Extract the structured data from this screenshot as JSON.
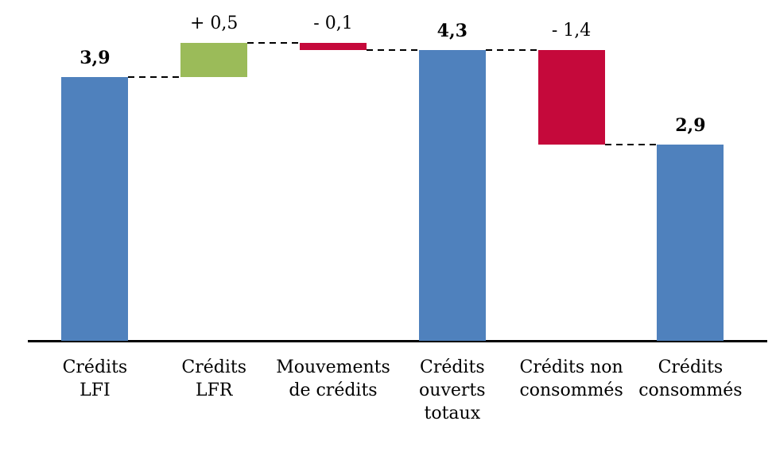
{
  "chart_data": {
    "type": "bar",
    "subtype": "waterfall",
    "title": "",
    "xlabel": "",
    "ylabel": "",
    "grid": false,
    "legend": false,
    "value_unit": "Md€ (implied, not shown)",
    "ylim": [
      0,
      5.1
    ],
    "axis_color": "#000000",
    "connector_style": "dashed",
    "colors": {
      "total": "#4f81bd",
      "increase": "#9bbb59",
      "decrease": "#c5093b"
    },
    "categories": [
      "Crédits LFI",
      "Crédits LFR",
      "Mouvements de crédits",
      "Crédits ouverts totaux",
      "Crédits non consommés",
      "Crédits consommés"
    ],
    "category_lines": [
      [
        "Crédits",
        "LFI"
      ],
      [
        "Crédits",
        "LFR"
      ],
      [
        "Mouvements",
        "de crédits"
      ],
      [
        "Crédits",
        "ouverts",
        "totaux"
      ],
      [
        "Crédits non",
        "consommés"
      ],
      [
        "Crédits",
        "consommés"
      ]
    ],
    "bars": [
      {
        "label": "3,9",
        "value": 3.9,
        "start": 0,
        "end": 3.9,
        "kind": "total",
        "color": "#4f81bd",
        "bold_label": true
      },
      {
        "label": "+ 0,5",
        "value": 0.5,
        "start": 3.9,
        "end": 4.4,
        "kind": "increase",
        "color": "#9bbb59",
        "bold_label": false
      },
      {
        "label": "- 0,1",
        "value": -0.1,
        "start": 4.4,
        "end": 4.3,
        "kind": "decrease",
        "color": "#c5093b",
        "bold_label": false
      },
      {
        "label": "4,3",
        "value": 4.3,
        "start": 0,
        "end": 4.3,
        "kind": "total",
        "color": "#4f81bd",
        "bold_label": true
      },
      {
        "label": "- 1,4",
        "value": -1.4,
        "start": 4.3,
        "end": 2.9,
        "kind": "decrease",
        "color": "#c5093b",
        "bold_label": false
      },
      {
        "label": "2,9",
        "value": 2.9,
        "start": 0,
        "end": 2.9,
        "kind": "total",
        "color": "#4f81bd",
        "bold_label": true
      }
    ],
    "connectors": [
      {
        "from": 0,
        "to": 1,
        "level": 3.9
      },
      {
        "from": 1,
        "to": 2,
        "level": 4.4
      },
      {
        "from": 2,
        "to": 3,
        "level": 4.3
      },
      {
        "from": 3,
        "to": 4,
        "level": 4.3
      },
      {
        "from": 4,
        "to": 5,
        "level": 2.9
      }
    ]
  }
}
